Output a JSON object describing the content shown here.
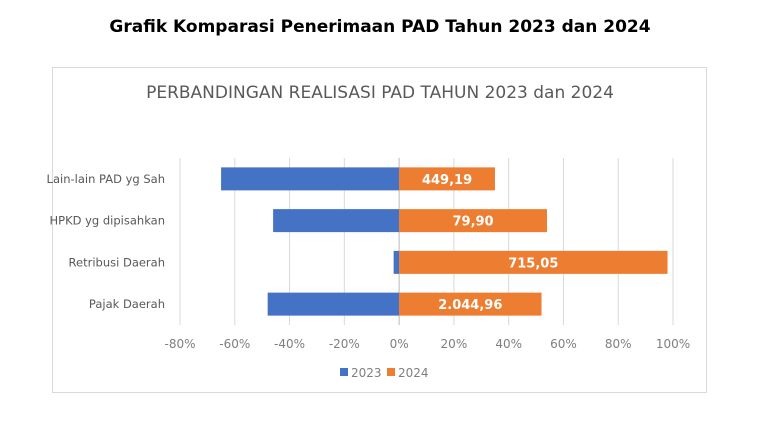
{
  "page": {
    "heading": "Grafik Komparasi Penerimaan PAD Tahun 2023 dan 2024"
  },
  "chart_data": {
    "type": "bar",
    "orientation": "horizontal",
    "title": "PERBANDINGAN REALISASI PAD TAHUN 2023 dan 2024",
    "xlabel": "",
    "ylabel": "",
    "categories": [
      "Lain-lain PAD yg Sah",
      "HPKD yg dipisahkan",
      "Retribusi Daerah",
      "Pajak Daerah"
    ],
    "series": [
      {
        "name": "2023",
        "color": "#4472C4",
        "values": [
          -65,
          -46,
          -2,
          -48
        ]
      },
      {
        "name": "2024",
        "color": "#ED7D31",
        "values": [
          35,
          54,
          98,
          52
        ],
        "data_labels": [
          "449,19",
          "79,90",
          "715,05",
          "2.044,96"
        ]
      }
    ],
    "xlim": [
      -80,
      100
    ],
    "xticks": [
      -80,
      -60,
      -40,
      -20,
      0,
      20,
      40,
      60,
      80,
      100
    ],
    "xtick_labels": [
      "-80%",
      "-60%",
      "-40%",
      "-20%",
      "0%",
      "20%",
      "40%",
      "60%",
      "80%",
      "100%"
    ],
    "grid": true,
    "legend": "bottom"
  }
}
